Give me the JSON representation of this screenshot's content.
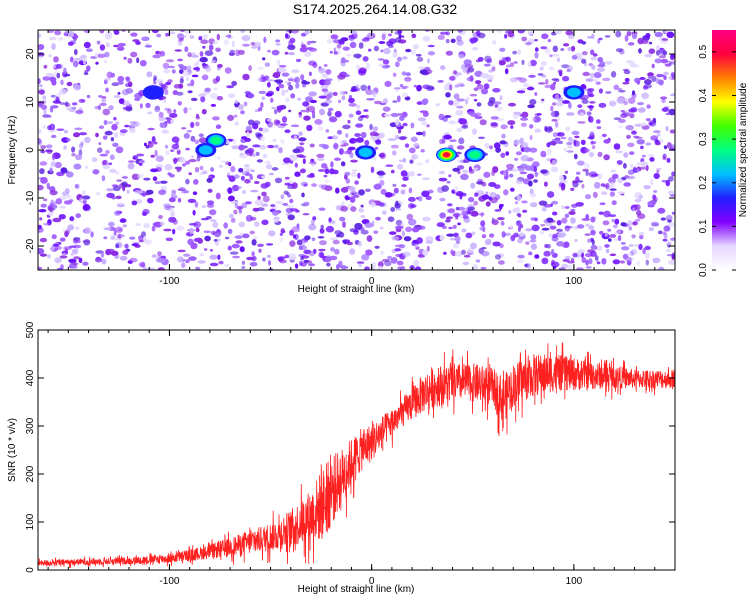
{
  "title": "S174.2025.264.14.08.G32",
  "chart_data": [
    {
      "type": "heatmap",
      "title": "S174.2025.264.14.08.G32",
      "xlabel": "Height of straight line (km)",
      "ylabel": "Frequency (Hz)",
      "xlim": [
        -165,
        150
      ],
      "ylim": [
        -25,
        25
      ],
      "xticks": [
        -100,
        0,
        100
      ],
      "yticks": [
        -20,
        -10,
        0,
        10,
        20
      ],
      "colorbar": {
        "label": "Normalized spectral amplitude",
        "range": [
          0.0,
          0.55
        ],
        "ticks": [
          0.0,
          0.1,
          0.2,
          0.3,
          0.4,
          0.5
        ],
        "colors": [
          "#ffffff",
          "#e6d6ff",
          "#8000ff",
          "#2020ff",
          "#00c0ff",
          "#00ff80",
          "#40ff00",
          "#ffff00",
          "#ff8000",
          "#ff0040",
          "#ff0080"
        ]
      },
      "peaks": [
        {
          "x": 37,
          "y": -1,
          "amplitude": 0.55
        },
        {
          "x": 51,
          "y": -1,
          "amplitude": 0.2
        },
        {
          "x": -3,
          "y": -0.5,
          "amplitude": 0.18
        },
        {
          "x": -77,
          "y": 2,
          "amplitude": 0.22
        },
        {
          "x": -82,
          "y": 0,
          "amplitude": 0.15
        },
        {
          "x": 100,
          "y": 12,
          "amplitude": 0.15
        },
        {
          "x": -108,
          "y": 12,
          "amplitude": 0.1
        }
      ]
    },
    {
      "type": "line",
      "xlabel": "Height of straight line (km)",
      "ylabel": "SNR (10 * v/v)",
      "xlim": [
        -165,
        150
      ],
      "ylim": [
        0,
        500
      ],
      "xticks": [
        -100,
        0,
        100
      ],
      "yticks": [
        0,
        100,
        200,
        300,
        400,
        500
      ],
      "series": [
        {
          "name": "SNR",
          "color": "#ff2020",
          "x": [
            -165,
            -140,
            -120,
            -100,
            -90,
            -80,
            -70,
            -60,
            -50,
            -40,
            -30,
            -25,
            -20,
            -15,
            -10,
            -5,
            0,
            5,
            10,
            15,
            20,
            25,
            30,
            40,
            50,
            60,
            65,
            70,
            80,
            90,
            100,
            110,
            120,
            130,
            140,
            150
          ],
          "mean": [
            15,
            18,
            20,
            25,
            32,
            40,
            50,
            60,
            72,
            90,
            120,
            140,
            170,
            200,
            230,
            255,
            270,
            290,
            310,
            330,
            350,
            370,
            385,
            395,
            395,
            385,
            360,
            390,
            410,
            415,
            412,
            408,
            405,
            400,
            400,
            400
          ],
          "spread": [
            12,
            14,
            15,
            20,
            25,
            30,
            40,
            50,
            60,
            80,
            110,
            150,
            150,
            120,
            100,
            90,
            80,
            70,
            60,
            60,
            70,
            80,
            90,
            80,
            80,
            80,
            100,
            90,
            90,
            80,
            70,
            60,
            50,
            40,
            40,
            40
          ]
        }
      ]
    }
  ]
}
